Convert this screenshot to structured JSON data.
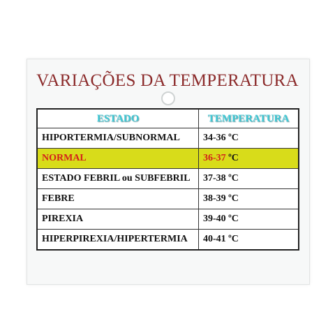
{
  "title": "VARIAÇÕES DA TEMPERATURA",
  "table": {
    "header": [
      "ESTADO",
      "TEMPERATURA"
    ],
    "rows": [
      [
        "HIPORTERMIA/SUBNORMAL",
        "34-36",
        "ºC"
      ],
      [
        "NORMAL",
        "36-37",
        "ºC"
      ],
      [
        "ESTADO FEBRIL ou SUBFEBRIL",
        "37-38",
        "ºC"
      ],
      [
        "FEBRE",
        "38-39",
        "ºC"
      ],
      [
        "PIREXIA",
        "39-40",
        "ºC"
      ],
      [
        "HIPERPIREXIA/HIPERTERMIA",
        "40-41",
        "ºC"
      ]
    ]
  }
}
